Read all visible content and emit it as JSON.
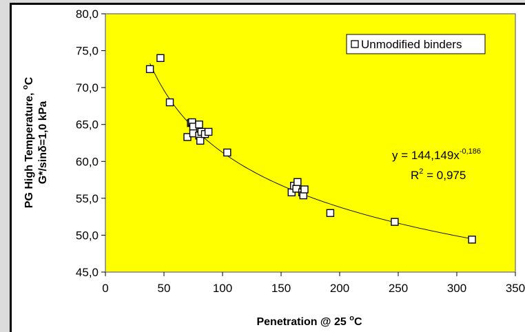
{
  "chart_data": {
    "type": "scatter",
    "xlabel_main": "Penetration @ 25 ",
    "xlabel_sup": "o",
    "xlabel_unit": "C",
    "ylabel_line1_main": "PG High Temperature, ",
    "ylabel_line1_sup": "o",
    "ylabel_line1_unit": "C",
    "ylabel_line2_pre": "G*/sin",
    "ylabel_line2_delta": "δ",
    "ylabel_line2_post": "=1,0 kPa",
    "xlim": [
      0,
      350
    ],
    "ylim": [
      45,
      80
    ],
    "xticks": [
      0,
      50,
      100,
      150,
      200,
      250,
      300,
      350
    ],
    "xtick_labels": [
      "0",
      "50",
      "100",
      "150",
      "200",
      "250",
      "300",
      "350"
    ],
    "yticks": [
      45,
      50,
      55,
      60,
      65,
      70,
      75,
      80
    ],
    "ytick_labels": [
      "45,0",
      "50,0",
      "55,0",
      "60,0",
      "65,0",
      "70,0",
      "75,0",
      "80,0"
    ],
    "grid": false,
    "legend": {
      "position": "top-right",
      "entries": [
        "Unmodified binders"
      ]
    },
    "plot_background": "#ffff00",
    "marker_fill": "#ffffff",
    "marker_stroke": "#000000",
    "series": [
      {
        "name": "Unmodified binders",
        "marker": "square",
        "points": [
          [
            38,
            72.5
          ],
          [
            47,
            74.0
          ],
          [
            55,
            68.0
          ],
          [
            70,
            63.3
          ],
          [
            73,
            65.2
          ],
          [
            74,
            65.3
          ],
          [
            75,
            64.7
          ],
          [
            75,
            63.8
          ],
          [
            80,
            65.0
          ],
          [
            80,
            63.5
          ],
          [
            81,
            62.8
          ],
          [
            82,
            64.0
          ],
          [
            85,
            63.7
          ],
          [
            88,
            64.0
          ],
          [
            104,
            61.2
          ],
          [
            159,
            55.8
          ],
          [
            161,
            56.7
          ],
          [
            163,
            56.3
          ],
          [
            164,
            57.2
          ],
          [
            168,
            55.8
          ],
          [
            169,
            55.4
          ],
          [
            170,
            56.2
          ],
          [
            192,
            53.0
          ],
          [
            247,
            51.8
          ],
          [
            313,
            49.4
          ]
        ]
      }
    ],
    "trendline": {
      "type": "power",
      "coefficient": 144.149,
      "exponent": -0.186,
      "x_range": [
        38,
        313
      ]
    },
    "annotations": {
      "equation_prefix": "y = 144,149x",
      "equation_exponent": "-0,186",
      "r2_prefix": "R",
      "r2_sup": "2",
      "r2_value": " = 0,975"
    }
  }
}
